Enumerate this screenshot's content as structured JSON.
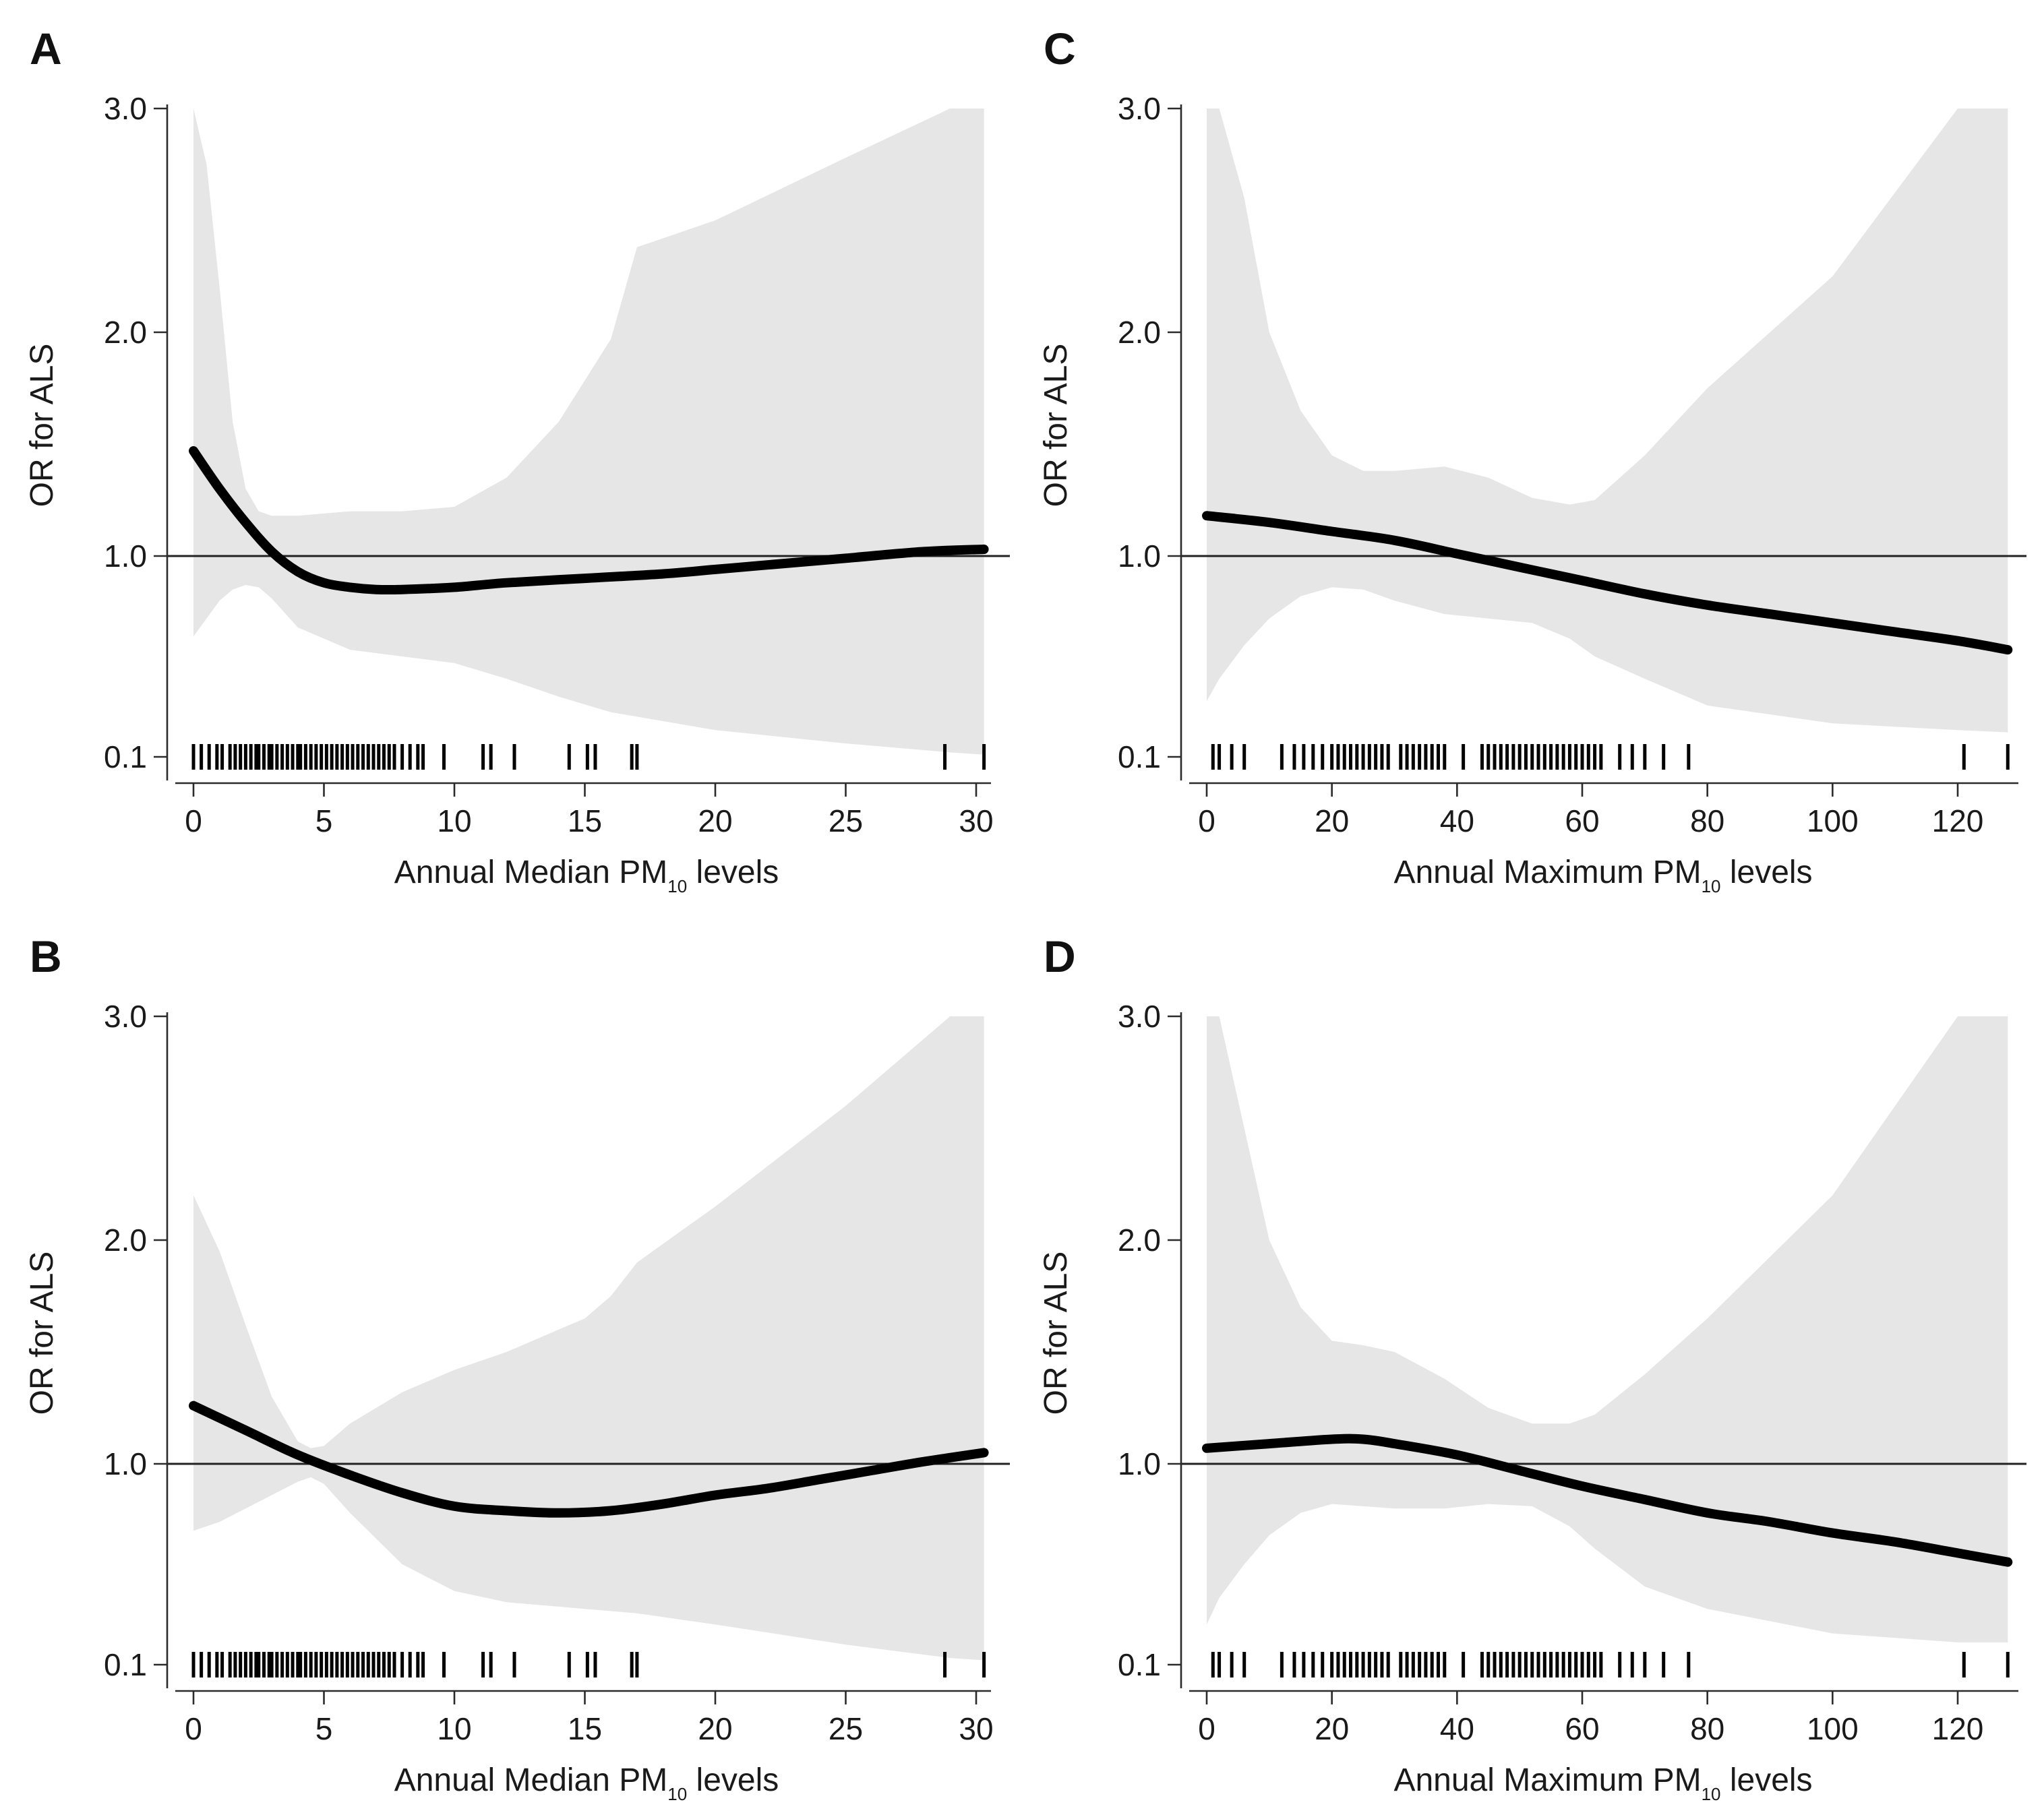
{
  "chart_data": [
    {
      "panel": "A",
      "type": "line",
      "xlabel": "Annual Median PM",
      "xlabel_subscript": "10",
      "xlabel_suffix": " levels",
      "ylabel": "OR for ALS",
      "xlim": [
        -1,
        31
      ],
      "x_ticks": [
        0,
        5,
        10,
        15,
        20,
        25,
        30
      ],
      "y_ticks": [
        "0.1",
        "1.0",
        "2.0",
        "3.0"
      ],
      "y_tick_values": [
        0.1,
        1.0,
        2.0,
        3.0
      ],
      "ylim": [
        0.0,
        3.0
      ],
      "reference_line": 1.0,
      "series": [
        {
          "x": [
            0,
            1,
            2,
            3,
            4,
            5,
            6,
            7,
            8,
            10,
            12,
            15,
            18,
            20,
            22,
            25,
            28,
            30.3
          ],
          "y": [
            1.47,
            1.3,
            1.15,
            1.02,
            0.93,
            0.88,
            0.86,
            0.85,
            0.85,
            0.86,
            0.88,
            0.9,
            0.92,
            0.94,
            0.96,
            0.99,
            1.02,
            1.03
          ]
        }
      ],
      "confidence_band": {
        "x": [
          0,
          0.5,
          1,
          1.5,
          2,
          2.5,
          3,
          4,
          6,
          8,
          10,
          12,
          14,
          16,
          17,
          20,
          25,
          29,
          30.3
        ],
        "lower": [
          0.64,
          0.72,
          0.8,
          0.85,
          0.87,
          0.86,
          0.81,
          0.68,
          0.58,
          0.55,
          0.52,
          0.45,
          0.37,
          0.3,
          0.28,
          0.22,
          0.16,
          0.12,
          0.11
        ],
        "upper": [
          3.0,
          2.75,
          2.2,
          1.6,
          1.3,
          1.2,
          1.18,
          1.18,
          1.2,
          1.2,
          1.22,
          1.35,
          1.6,
          1.97,
          2.38,
          2.5,
          2.78,
          3.0,
          3.0
        ]
      },
      "rug_x": [
        0,
        0.3,
        0.6,
        0.9,
        1.1,
        1.4,
        1.6,
        1.8,
        2.0,
        2.2,
        2.4,
        2.5,
        2.7,
        2.9,
        3.0,
        3.2,
        3.4,
        3.6,
        3.8,
        4.0,
        4.1,
        4.3,
        4.5,
        4.7,
        4.9,
        5.1,
        5.3,
        5.5,
        5.7,
        5.9,
        6.1,
        6.3,
        6.5,
        6.7,
        6.9,
        7.1,
        7.3,
        7.5,
        7.7,
        8.0,
        8.3,
        8.6,
        8.8,
        9.6,
        11.1,
        11.4,
        12.3,
        14.4,
        15.1,
        15.4,
        16.8,
        17.0,
        28.8,
        30.3
      ]
    },
    {
      "panel": "B",
      "type": "line",
      "xlabel": "Annual Median PM",
      "xlabel_subscript": "10",
      "xlabel_suffix": " levels",
      "ylabel": "OR for ALS",
      "xlim": [
        -1,
        31
      ],
      "x_ticks": [
        0,
        5,
        10,
        15,
        20,
        25,
        30
      ],
      "y_ticks": [
        "0.1",
        "1.0",
        "2.0",
        "3.0"
      ],
      "y_tick_values": [
        0.1,
        1.0,
        2.0,
        3.0
      ],
      "ylim": [
        0.0,
        3.0
      ],
      "reference_line": 1.0,
      "series": [
        {
          "x": [
            0,
            2,
            4,
            6,
            8,
            10,
            12,
            14,
            16,
            18,
            20,
            22,
            24,
            26,
            28,
            30.3
          ],
          "y": [
            1.26,
            1.15,
            1.04,
            0.95,
            0.87,
            0.81,
            0.79,
            0.78,
            0.79,
            0.82,
            0.86,
            0.89,
            0.93,
            0.97,
            1.01,
            1.05
          ]
        }
      ],
      "confidence_band": {
        "x": [
          0,
          1,
          2,
          3,
          4,
          4.5,
          5,
          6,
          8,
          10,
          12,
          14,
          15,
          16,
          17,
          20,
          25,
          29,
          30.3
        ],
        "lower": [
          0.7,
          0.74,
          0.8,
          0.86,
          0.92,
          0.94,
          0.91,
          0.78,
          0.55,
          0.43,
          0.38,
          0.36,
          0.35,
          0.34,
          0.33,
          0.28,
          0.19,
          0.13,
          0.12
        ],
        "upper": [
          2.2,
          1.95,
          1.62,
          1.3,
          1.1,
          1.07,
          1.08,
          1.18,
          1.32,
          1.42,
          1.5,
          1.6,
          1.65,
          1.75,
          1.9,
          2.15,
          2.6,
          3.0,
          3.0
        ]
      },
      "rug_x": [
        0,
        0.3,
        0.6,
        0.9,
        1.1,
        1.4,
        1.6,
        1.8,
        2.0,
        2.2,
        2.4,
        2.5,
        2.7,
        2.9,
        3.0,
        3.2,
        3.4,
        3.6,
        3.8,
        4.0,
        4.1,
        4.3,
        4.5,
        4.7,
        4.9,
        5.1,
        5.3,
        5.5,
        5.7,
        5.9,
        6.1,
        6.3,
        6.5,
        6.7,
        6.9,
        7.1,
        7.3,
        7.5,
        7.7,
        8.0,
        8.3,
        8.6,
        8.8,
        9.6,
        11.1,
        11.4,
        12.3,
        14.4,
        15.1,
        15.4,
        16.8,
        17.0,
        28.8,
        30.3
      ]
    },
    {
      "panel": "C",
      "type": "line",
      "xlabel": "Annual Maximum PM",
      "xlabel_subscript": "10",
      "xlabel_suffix": " levels",
      "ylabel": "OR for ALS",
      "xlim": [
        -4,
        131
      ],
      "x_ticks": [
        0,
        20,
        40,
        60,
        80,
        100,
        120
      ],
      "y_ticks": [
        "0.1",
        "1.0",
        "2.0",
        "3.0"
      ],
      "y_tick_values": [
        0.1,
        1.0,
        2.0,
        3.0
      ],
      "ylim": [
        0.0,
        3.0
      ],
      "reference_line": 1.0,
      "series": [
        {
          "x": [
            0,
            10,
            20,
            30,
            40,
            50,
            60,
            70,
            80,
            90,
            100,
            110,
            120,
            128
          ],
          "y": [
            1.18,
            1.15,
            1.11,
            1.07,
            1.01,
            0.95,
            0.89,
            0.83,
            0.78,
            0.74,
            0.7,
            0.66,
            0.62,
            0.58
          ]
        }
      ],
      "confidence_band": {
        "x": [
          0,
          2,
          6,
          10,
          15,
          20,
          25,
          30,
          38,
          45,
          52,
          58,
          62,
          70,
          80,
          100,
          120,
          128
        ],
        "lower": [
          0.35,
          0.45,
          0.6,
          0.72,
          0.82,
          0.86,
          0.85,
          0.8,
          0.74,
          0.72,
          0.7,
          0.63,
          0.55,
          0.45,
          0.33,
          0.25,
          0.22,
          0.21
        ],
        "upper": [
          3.0,
          3.0,
          2.6,
          2.0,
          1.65,
          1.45,
          1.38,
          1.38,
          1.4,
          1.35,
          1.26,
          1.23,
          1.25,
          1.45,
          1.75,
          2.25,
          3.0,
          3.0
        ]
      },
      "rug_x": [
        1,
        2,
        4,
        6,
        12,
        14,
        15.5,
        17,
        18.5,
        20,
        21,
        22,
        23,
        24,
        25,
        26,
        27,
        28,
        29,
        31,
        32,
        33,
        34,
        35,
        36,
        37,
        38,
        41,
        44,
        45,
        46,
        47,
        48,
        49,
        50,
        51,
        52,
        53,
        54,
        55,
        56,
        57,
        58,
        59,
        60,
        61,
        62,
        63,
        66,
        68,
        70,
        73,
        77,
        121,
        128
      ]
    },
    {
      "panel": "D",
      "type": "line",
      "xlabel": "Annual Maximum PM",
      "xlabel_subscript": "10",
      "xlabel_suffix": " levels",
      "ylabel": "OR for ALS",
      "xlim": [
        -4,
        131
      ],
      "x_ticks": [
        0,
        20,
        40,
        60,
        80,
        100,
        120
      ],
      "y_ticks": [
        "0.1",
        "1.0",
        "2.0",
        "3.0"
      ],
      "y_tick_values": [
        0.1,
        1.0,
        2.0,
        3.0
      ],
      "ylim": [
        0.0,
        3.0
      ],
      "reference_line": 1.0,
      "series": [
        {
          "x": [
            0,
            10,
            20,
            25,
            30,
            40,
            50,
            60,
            70,
            80,
            90,
            100,
            110,
            120,
            128
          ],
          "y": [
            1.07,
            1.09,
            1.11,
            1.11,
            1.09,
            1.04,
            0.97,
            0.9,
            0.84,
            0.78,
            0.74,
            0.69,
            0.65,
            0.6,
            0.56
          ]
        }
      ],
      "confidence_band": {
        "x": [
          0,
          2,
          6,
          10,
          15,
          20,
          25,
          30,
          38,
          45,
          52,
          58,
          62,
          70,
          80,
          100,
          120,
          128
        ],
        "lower": [
          0.28,
          0.4,
          0.55,
          0.68,
          0.78,
          0.82,
          0.81,
          0.8,
          0.8,
          0.82,
          0.81,
          0.72,
          0.62,
          0.45,
          0.35,
          0.24,
          0.2,
          0.2
        ],
        "upper": [
          3.0,
          3.0,
          2.5,
          2.0,
          1.7,
          1.55,
          1.53,
          1.5,
          1.38,
          1.25,
          1.18,
          1.18,
          1.22,
          1.4,
          1.65,
          2.2,
          3.0,
          3.0
        ]
      },
      "rug_x": [
        1,
        2,
        4,
        6,
        12,
        14,
        15.5,
        17,
        18.5,
        20,
        21,
        22,
        23,
        24,
        25,
        26,
        27,
        28,
        29,
        31,
        32,
        33,
        34,
        35,
        36,
        37,
        38,
        41,
        44,
        45,
        46,
        47,
        48,
        49,
        50,
        51,
        52,
        53,
        54,
        55,
        56,
        57,
        58,
        59,
        60,
        61,
        62,
        63,
        66,
        68,
        70,
        73,
        77,
        121,
        128
      ]
    }
  ]
}
